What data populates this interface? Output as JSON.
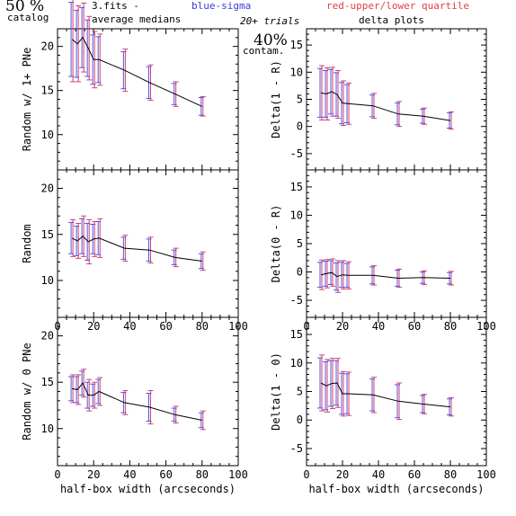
{
  "header": {
    "percent_label": "50 %",
    "catalog_label": "catalog",
    "file_label": "3.fits  -",
    "blue_label": "blue-sigma",
    "red_label": "red-upper/lower quartile",
    "avg_label": "average medians",
    "trials_label": "20+ trials",
    "contam_pct_label": "40%",
    "contam_label": "contam.",
    "delta_label": "delta plots"
  },
  "colors": {
    "sigma": "#5a4fe0",
    "quartile": "#d04070",
    "line": "#000000",
    "axes": "#000000"
  },
  "chart_data": [
    {
      "id": "p1",
      "type": "line",
      "ylabel": "Random w/ 1+ PNe",
      "xlabel": "",
      "xlim": [
        0,
        100
      ],
      "ylim": [
        6,
        22
      ],
      "x_ticks": [],
      "y_ticks": [
        10,
        15,
        20
      ],
      "grid": false,
      "x": [
        8,
        11,
        14,
        17,
        20,
        23,
        37,
        51,
        65,
        80
      ],
      "y": [
        20.8,
        20.3,
        21.0,
        19.8,
        18.5,
        18.5,
        17.3,
        15.9,
        14.6,
        13.2
      ],
      "sigma_err": [
        4.2,
        3.8,
        3.4,
        3.2,
        2.8,
        2.6,
        2.1,
        1.8,
        1.2,
        1.0
      ],
      "quartile_err": [
        4.8,
        4.3,
        3.9,
        3.6,
        3.2,
        2.9,
        2.4,
        2.0,
        1.4,
        1.1
      ]
    },
    {
      "id": "p2",
      "type": "line",
      "ylabel": "Delta(1 - R)",
      "xlabel": "",
      "xlim": [
        0,
        100
      ],
      "ylim": [
        -8,
        18
      ],
      "x_ticks": [],
      "y_ticks": [
        -5,
        0,
        5,
        10,
        15
      ],
      "grid": false,
      "x": [
        8,
        11,
        14,
        17,
        20,
        23,
        37,
        51,
        65,
        80
      ],
      "y": [
        6.2,
        6.0,
        6.4,
        5.9,
        4.3,
        4.2,
        3.8,
        2.3,
        1.9,
        1.1
      ],
      "sigma_err": [
        4.5,
        4.3,
        4.1,
        4.0,
        3.8,
        3.5,
        2.0,
        2.0,
        1.3,
        1.4
      ],
      "quartile_err": [
        5.0,
        4.8,
        4.5,
        4.4,
        4.1,
        3.8,
        2.3,
        2.3,
        1.5,
        1.6
      ]
    },
    {
      "id": "p3",
      "type": "line",
      "ylabel": "Random",
      "xlabel": "",
      "xlim": [
        0,
        100
      ],
      "ylim": [
        6,
        22
      ],
      "x_ticks": [
        0,
        20,
        40,
        60,
        80,
        100
      ],
      "y_ticks": [
        10,
        15,
        20
      ],
      "grid": false,
      "x": [
        8,
        11,
        14,
        17,
        20,
        23,
        37,
        51,
        65,
        80
      ],
      "y": [
        14.6,
        14.3,
        14.8,
        14.2,
        14.5,
        14.6,
        13.5,
        13.3,
        12.5,
        12.1
      ],
      "sigma_err": [
        1.7,
        1.6,
        1.9,
        2.0,
        1.6,
        1.8,
        1.2,
        1.2,
        0.8,
        0.8
      ],
      "quartile_err": [
        2.0,
        1.9,
        2.2,
        2.4,
        1.9,
        2.1,
        1.4,
        1.4,
        1.0,
        1.0
      ]
    },
    {
      "id": "p4",
      "type": "line",
      "ylabel": "Delta(0 - R)",
      "xlabel": "",
      "xlim": [
        0,
        100
      ],
      "ylim": [
        -8,
        18
      ],
      "x_ticks": [
        0,
        20,
        40,
        60,
        80,
        100
      ],
      "y_ticks": [
        -5,
        0,
        5,
        10,
        15
      ],
      "grid": false,
      "x": [
        8,
        11,
        14,
        17,
        20,
        23,
        37,
        51,
        65,
        80
      ],
      "y": [
        -0.5,
        -0.3,
        -0.1,
        -0.8,
        -0.5,
        -0.6,
        -0.6,
        -1.1,
        -1.0,
        -1.1
      ],
      "sigma_err": [
        2.2,
        2.2,
        2.1,
        2.4,
        2.2,
        2.1,
        1.5,
        1.4,
        1.0,
        1.0
      ],
      "quartile_err": [
        2.6,
        2.5,
        2.4,
        2.8,
        2.5,
        2.4,
        1.7,
        1.6,
        1.2,
        1.2
      ]
    },
    {
      "id": "p5",
      "type": "line",
      "ylabel": "Random w/ 0 PNe",
      "xlabel": "half-box width (arcseconds)",
      "xlim": [
        0,
        100
      ],
      "ylim": [
        6,
        22
      ],
      "x_ticks": [
        0,
        20,
        40,
        60,
        80,
        100
      ],
      "y_ticks": [
        10,
        15,
        20
      ],
      "grid": false,
      "x": [
        8,
        11,
        14,
        17,
        20,
        23,
        37,
        51,
        65,
        80
      ],
      "y": [
        14.3,
        14.2,
        14.9,
        13.6,
        13.6,
        14.0,
        12.8,
        12.3,
        11.5,
        10.9
      ],
      "sigma_err": [
        1.3,
        1.4,
        1.3,
        1.4,
        1.2,
        1.3,
        1.1,
        1.5,
        0.7,
        0.8
      ],
      "quartile_err": [
        1.5,
        1.6,
        1.5,
        1.7,
        1.4,
        1.5,
        1.3,
        1.8,
        0.9,
        1.0
      ]
    },
    {
      "id": "p6",
      "type": "line",
      "ylabel": "Delta(1 - 0)",
      "xlabel": "half-box width (arcseconds)",
      "xlim": [
        0,
        100
      ],
      "ylim": [
        -8,
        18
      ],
      "x_ticks": [
        0,
        20,
        40,
        60,
        80,
        100
      ],
      "y_ticks": [
        -5,
        0,
        5,
        10,
        15
      ],
      "grid": false,
      "x": [
        8,
        11,
        14,
        17,
        20,
        23,
        37,
        51,
        65,
        80
      ],
      "y": [
        6.5,
        6.0,
        6.4,
        6.5,
        4.6,
        4.6,
        4.4,
        3.3,
        2.8,
        2.3
      ],
      "sigma_err": [
        4.4,
        4.2,
        4.0,
        3.9,
        3.6,
        3.5,
        2.8,
        2.9,
        1.5,
        1.4
      ],
      "quartile_err": [
        4.9,
        4.6,
        4.4,
        4.3,
        3.9,
        3.8,
        3.1,
        3.2,
        1.7,
        1.6
      ]
    }
  ]
}
